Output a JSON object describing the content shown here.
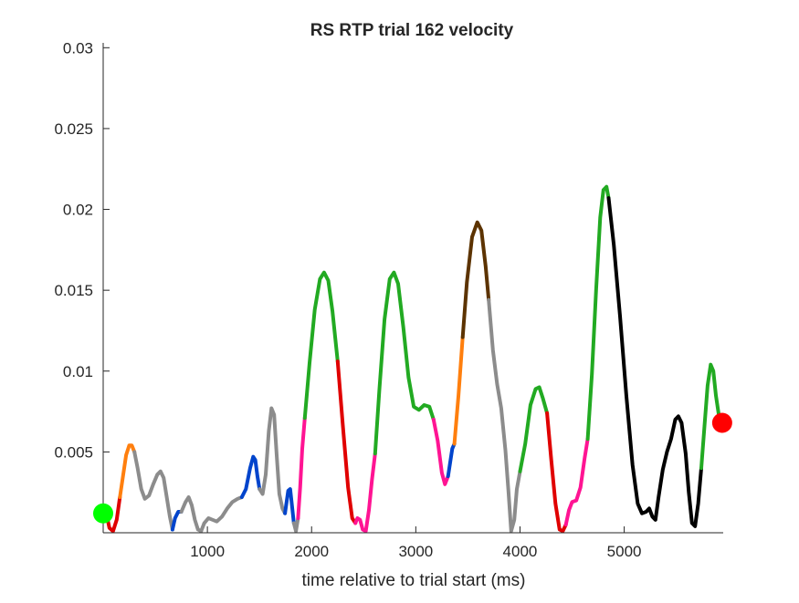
{
  "chart_data": {
    "type": "line",
    "title": "RS  RTP trial 162 velocity",
    "xlabel": "time relative to trial start (ms)",
    "ylabel": "",
    "xlim": [
      0,
      5950
    ],
    "ylim": [
      0,
      0.0303
    ],
    "x_ticks": [
      1000,
      2000,
      3000,
      4000,
      5000
    ],
    "y_ticks": [
      0.005,
      0.01,
      0.015,
      0.02,
      0.025,
      0.03
    ],
    "x_tick_labels": [
      "1000",
      "2000",
      "3000",
      "4000",
      "5000"
    ],
    "y_tick_labels": [
      "0.005",
      "0.01",
      "0.015",
      "0.02",
      "0.025",
      "0.03"
    ],
    "grid": false,
    "legend": "none",
    "start_marker": {
      "x": 0,
      "y": 0.0012,
      "color": "#00ff00"
    },
    "end_marker": {
      "x": 5940,
      "y": 0.0068,
      "color": "#ff0000"
    },
    "series": [
      {
        "color": "#e00000",
        "points": [
          [
            30,
            0.0012
          ],
          [
            60,
            0.0003
          ],
          [
            95,
            0.0001
          ],
          [
            130,
            0.0008
          ],
          [
            160,
            0.0022
          ]
        ]
      },
      {
        "color": "#ff7f0e",
        "points": [
          [
            160,
            0.0022
          ],
          [
            190,
            0.0035
          ],
          [
            220,
            0.0048
          ],
          [
            250,
            0.0054
          ],
          [
            275,
            0.0054
          ],
          [
            300,
            0.005
          ]
        ]
      },
      {
        "color": "#8c8c8c",
        "points": [
          [
            300,
            0.005
          ],
          [
            330,
            0.004
          ],
          [
            365,
            0.0027
          ],
          [
            400,
            0.0021
          ],
          [
            440,
            0.0023
          ],
          [
            480,
            0.003
          ],
          [
            520,
            0.0036
          ],
          [
            550,
            0.0038
          ],
          [
            580,
            0.0034
          ],
          [
            610,
            0.0022
          ],
          [
            640,
            0.001
          ],
          [
            665,
            0.0002
          ]
        ]
      },
      {
        "color": "#0044cc",
        "points": [
          [
            665,
            0.0002
          ],
          [
            690,
            0.0009
          ],
          [
            720,
            0.0013
          ],
          [
            750,
            0.0013
          ]
        ]
      },
      {
        "color": "#8c8c8c",
        "points": [
          [
            750,
            0.0013
          ],
          [
            790,
            0.0019
          ],
          [
            820,
            0.0022
          ],
          [
            850,
            0.0017
          ],
          [
            880,
            0.0008
          ],
          [
            910,
            0.0002
          ],
          [
            940,
            0.0001
          ],
          [
            970,
            0.0006
          ],
          [
            1010,
            0.0009
          ],
          [
            1050,
            0.0008
          ],
          [
            1090,
            0.0007
          ],
          [
            1140,
            0.001
          ],
          [
            1190,
            0.0015
          ],
          [
            1240,
            0.0019
          ],
          [
            1290,
            0.0021
          ],
          [
            1330,
            0.0022
          ]
        ]
      },
      {
        "color": "#0044cc",
        "points": [
          [
            1330,
            0.0022
          ],
          [
            1370,
            0.0027
          ],
          [
            1410,
            0.004
          ],
          [
            1440,
            0.0047
          ],
          [
            1460,
            0.0045
          ],
          [
            1480,
            0.0035
          ],
          [
            1500,
            0.0027
          ]
        ]
      },
      {
        "color": "#8c8c8c",
        "points": [
          [
            1500,
            0.0027
          ],
          [
            1530,
            0.0024
          ],
          [
            1560,
            0.0036
          ],
          [
            1590,
            0.0063
          ],
          [
            1615,
            0.0077
          ],
          [
            1640,
            0.0073
          ],
          [
            1665,
            0.0048
          ],
          [
            1690,
            0.0024
          ],
          [
            1720,
            0.0015
          ],
          [
            1745,
            0.0012
          ]
        ]
      },
      {
        "color": "#0044cc",
        "points": [
          [
            1745,
            0.0012
          ],
          [
            1775,
            0.0026
          ],
          [
            1795,
            0.0027
          ],
          [
            1815,
            0.0015
          ],
          [
            1830,
            0.0006
          ]
        ]
      },
      {
        "color": "#8c8c8c",
        "points": [
          [
            1830,
            0.0006
          ],
          [
            1850,
            0.0001
          ],
          [
            1870,
            0.0009
          ]
        ]
      },
      {
        "color": "#ff1493",
        "points": [
          [
            1870,
            0.0009
          ],
          [
            1890,
            0.0028
          ],
          [
            1910,
            0.0052
          ],
          [
            1935,
            0.0071
          ]
        ]
      },
      {
        "color": "#22aa22",
        "points": [
          [
            1935,
            0.0071
          ],
          [
            1980,
            0.0105
          ],
          [
            2030,
            0.0138
          ],
          [
            2080,
            0.0157
          ],
          [
            2120,
            0.0161
          ],
          [
            2160,
            0.0156
          ],
          [
            2200,
            0.0137
          ],
          [
            2250,
            0.0106
          ]
        ]
      },
      {
        "color": "#e00000",
        "points": [
          [
            2250,
            0.0106
          ],
          [
            2300,
            0.0066
          ],
          [
            2350,
            0.0028
          ],
          [
            2390,
            0.0009
          ],
          [
            2420,
            0.0006
          ]
        ]
      },
      {
        "color": "#ff1493",
        "points": [
          [
            2420,
            0.0006
          ],
          [
            2440,
            0.0009
          ],
          [
            2465,
            0.0008
          ],
          [
            2490,
            0.0002
          ],
          [
            2520,
            0.0001
          ],
          [
            2550,
            0.0014
          ],
          [
            2580,
            0.0033
          ],
          [
            2610,
            0.0049
          ]
        ]
      },
      {
        "color": "#22aa22",
        "points": [
          [
            2610,
            0.0049
          ],
          [
            2650,
            0.0088
          ],
          [
            2700,
            0.0132
          ],
          [
            2750,
            0.0157
          ],
          [
            2790,
            0.0161
          ],
          [
            2830,
            0.0154
          ],
          [
            2880,
            0.0127
          ],
          [
            2930,
            0.0096
          ],
          [
            2980,
            0.0078
          ],
          [
            3030,
            0.0076
          ],
          [
            3080,
            0.0079
          ],
          [
            3130,
            0.0078
          ],
          [
            3170,
            0.007
          ]
        ]
      },
      {
        "color": "#ff1493",
        "points": [
          [
            3170,
            0.007
          ],
          [
            3210,
            0.0057
          ],
          [
            3250,
            0.0037
          ],
          [
            3280,
            0.003
          ],
          [
            3310,
            0.0035
          ]
        ]
      },
      {
        "color": "#0044cc",
        "points": [
          [
            3310,
            0.0035
          ],
          [
            3350,
            0.0052
          ],
          [
            3370,
            0.0055
          ]
        ]
      },
      {
        "color": "#ff7f0e",
        "points": [
          [
            3370,
            0.0055
          ],
          [
            3410,
            0.0085
          ],
          [
            3450,
            0.0121
          ]
        ]
      },
      {
        "color": "#5c3300",
        "points": [
          [
            3450,
            0.0121
          ],
          [
            3490,
            0.0155
          ],
          [
            3540,
            0.0183
          ],
          [
            3590,
            0.0192
          ],
          [
            3630,
            0.0187
          ],
          [
            3670,
            0.0165
          ],
          [
            3700,
            0.0144
          ]
        ]
      },
      {
        "color": "#8c8c8c",
        "points": [
          [
            3700,
            0.0144
          ],
          [
            3740,
            0.0113
          ],
          [
            3780,
            0.0092
          ],
          [
            3820,
            0.0077
          ],
          [
            3860,
            0.0051
          ],
          [
            3890,
            0.0025
          ],
          [
            3915,
            0.0001
          ],
          [
            3945,
            0.0008
          ],
          [
            3970,
            0.0027
          ],
          [
            4000,
            0.0038
          ]
        ]
      },
      {
        "color": "#22aa22",
        "points": [
          [
            4000,
            0.0038
          ],
          [
            4050,
            0.0055
          ],
          [
            4100,
            0.0079
          ],
          [
            4150,
            0.0089
          ],
          [
            4185,
            0.009
          ],
          [
            4220,
            0.0083
          ],
          [
            4260,
            0.0074
          ]
        ]
      },
      {
        "color": "#e00000",
        "points": [
          [
            4260,
            0.0074
          ],
          [
            4300,
            0.0045
          ],
          [
            4340,
            0.0018
          ],
          [
            4380,
            0.0002
          ],
          [
            4410,
            0.0001
          ],
          [
            4440,
            0.0005
          ]
        ]
      },
      {
        "color": "#ff1493",
        "points": [
          [
            4440,
            0.0005
          ],
          [
            4470,
            0.0014
          ],
          [
            4500,
            0.0019
          ],
          [
            4540,
            0.002
          ],
          [
            4580,
            0.0028
          ],
          [
            4620,
            0.0046
          ],
          [
            4650,
            0.0058
          ]
        ]
      },
      {
        "color": "#22aa22",
        "points": [
          [
            4650,
            0.0058
          ],
          [
            4690,
            0.0098
          ],
          [
            4730,
            0.015
          ],
          [
            4770,
            0.0195
          ],
          [
            4800,
            0.0212
          ],
          [
            4830,
            0.0214
          ],
          [
            4850,
            0.0207
          ]
        ]
      },
      {
        "color": "#000000",
        "points": [
          [
            4850,
            0.0207
          ],
          [
            4900,
            0.0178
          ],
          [
            4960,
            0.0134
          ],
          [
            5020,
            0.0085
          ],
          [
            5080,
            0.0042
          ],
          [
            5130,
            0.0018
          ],
          [
            5170,
            0.0012
          ],
          [
            5210,
            0.0013
          ],
          [
            5240,
            0.0015
          ],
          [
            5270,
            0.001
          ],
          [
            5300,
            0.0008
          ],
          [
            5330,
            0.0022
          ],
          [
            5370,
            0.0039
          ],
          [
            5410,
            0.005
          ],
          [
            5450,
            0.0058
          ],
          [
            5490,
            0.007
          ],
          [
            5520,
            0.0072
          ],
          [
            5550,
            0.0068
          ],
          [
            5590,
            0.0049
          ],
          [
            5620,
            0.0025
          ],
          [
            5650,
            0.0006
          ],
          [
            5680,
            0.0004
          ],
          [
            5710,
            0.0018
          ],
          [
            5740,
            0.004
          ]
        ]
      },
      {
        "color": "#22aa22",
        "points": [
          [
            5740,
            0.004
          ],
          [
            5770,
            0.0066
          ],
          [
            5800,
            0.0091
          ],
          [
            5830,
            0.0104
          ],
          [
            5855,
            0.01
          ],
          [
            5880,
            0.0085
          ],
          [
            5910,
            0.0072
          ],
          [
            5940,
            0.0068
          ]
        ]
      }
    ]
  }
}
